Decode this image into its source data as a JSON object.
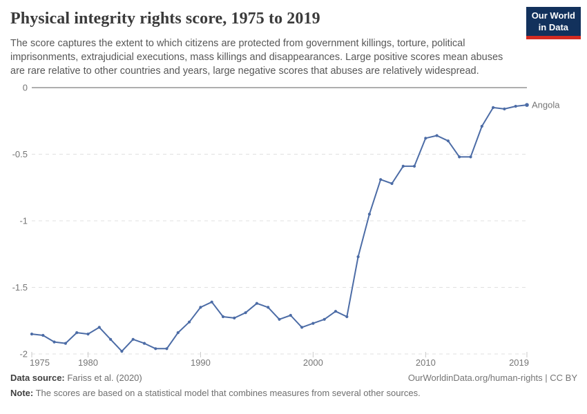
{
  "header": {
    "title": "Physical integrity rights score, 1975 to 2019",
    "subtitle": "The score captures the extent to which citizens are protected from government killings, torture, political imprisonments, extrajudicial executions, mass killings and disappearances. Large positive scores mean abuses are rare relative to other countries and years, large negative scores that abuses are relatively widespread.",
    "logo_line1": "Our World",
    "logo_line2": "in Data"
  },
  "chart_data": {
    "type": "line",
    "title": "Physical integrity rights score, 1975 to 2019",
    "x": [
      1975,
      1976,
      1977,
      1978,
      1979,
      1980,
      1981,
      1982,
      1983,
      1984,
      1985,
      1986,
      1987,
      1988,
      1989,
      1990,
      1991,
      1992,
      1993,
      1994,
      1995,
      1996,
      1997,
      1998,
      1999,
      2000,
      2001,
      2002,
      2003,
      2004,
      2005,
      2006,
      2007,
      2008,
      2009,
      2010,
      2011,
      2012,
      2013,
      2014,
      2015,
      2016,
      2017,
      2018,
      2019
    ],
    "series": [
      {
        "name": "Angola",
        "values": [
          -1.85,
          -1.86,
          -1.91,
          -1.92,
          -1.84,
          -1.85,
          -1.8,
          -1.89,
          -1.98,
          -1.89,
          -1.92,
          -1.96,
          -1.96,
          -1.84,
          -1.76,
          -1.65,
          -1.61,
          -1.72,
          -1.73,
          -1.69,
          -1.62,
          -1.65,
          -1.74,
          -1.71,
          -1.8,
          -1.77,
          -1.74,
          -1.68,
          -1.72,
          -1.27,
          -0.95,
          -0.69,
          -0.72,
          -0.59,
          -0.59,
          -0.38,
          -0.36,
          -0.4,
          -0.52,
          -0.52,
          -0.29,
          -0.15,
          -0.16,
          -0.14,
          -0.13
        ]
      }
    ],
    "x_ticks": [
      1975,
      1980,
      1990,
      2000,
      2010,
      2019
    ],
    "y_ticks": [
      0,
      -0.5,
      -1,
      -1.5,
      -2
    ],
    "y_tick_labels": [
      "0",
      "-0.5",
      "-1",
      "-1.5",
      "-2"
    ],
    "xlim": [
      1975,
      2019
    ],
    "ylim": [
      -2,
      0
    ],
    "grid": "horizontal-dashed",
    "legend_position": "end-of-line-label",
    "xlabel": "",
    "ylabel": ""
  },
  "footer": {
    "source_label": "Data source:",
    "source_text": " Fariss et al. (2020)",
    "credit": "OurWorldinData.org/human-rights | CC BY",
    "note_label": "Note:",
    "note_text": " The scores are based on a statistical model that combines measures from several other sources."
  },
  "colors": {
    "line": "#4C6CA6",
    "zero_line": "#a3a3a3",
    "gridline": "#e0e0e0",
    "axis_tick": "#c9c9c9",
    "tick_text": "#757575",
    "logo_bg": "#12315c",
    "logo_stripe": "#d42b21"
  }
}
